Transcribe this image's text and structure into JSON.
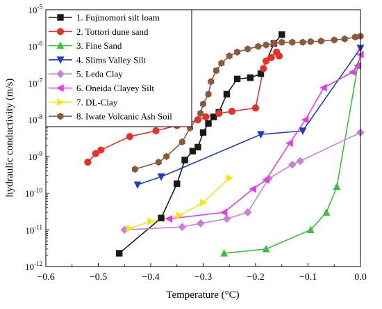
{
  "chart_data": {
    "type": "line",
    "xlabel": "Temperature (°C)",
    "ylabel": "hydraulic conductivity (m/s)",
    "x_scale": "linear",
    "y_scale": "log",
    "xlim": [
      -0.6,
      0.0
    ],
    "ylim": [
      1e-12,
      1e-05
    ],
    "x_ticks": [
      -0.6,
      -0.5,
      -0.4,
      -0.3,
      -0.2,
      -0.1,
      0.0
    ],
    "x_tick_labels": [
      "−0.6",
      "−0.5",
      "−0.4",
      "−0.3",
      "−0.2",
      "−0.1",
      "0.0"
    ],
    "y_ticks": [
      -12,
      -11,
      -10,
      -9,
      -8,
      -7,
      -6,
      -5
    ],
    "y_tick_labels": [
      {
        "base": "10",
        "exp": "-12"
      },
      {
        "base": "10",
        "exp": "-11"
      },
      {
        "base": "10",
        "exp": "-10"
      },
      {
        "base": "10",
        "exp": "-9"
      },
      {
        "base": "10",
        "exp": "-8"
      },
      {
        "base": "10",
        "exp": "-7"
      },
      {
        "base": "10",
        "exp": "-6"
      },
      {
        "base": "10",
        "exp": "-5"
      }
    ],
    "grid": false,
    "legend_position": "top-left",
    "series": [
      {
        "name": "1. Fujinomori silt loam",
        "color": "#1a1a1a",
        "marker": "square",
        "x": [
          -0.46,
          -0.38,
          -0.35,
          -0.335,
          -0.32,
          -0.31,
          -0.3,
          -0.29,
          -0.28,
          -0.27,
          -0.255,
          -0.235,
          -0.21,
          -0.19,
          -0.165,
          -0.15
        ],
        "y": [
          2.3e-12,
          2.1e-11,
          1.8e-10,
          8e-10,
          1.4e-09,
          1.8e-09,
          4.5e-09,
          8e-09,
          1.2e-08,
          1.6e-08,
          5e-08,
          1.3e-07,
          1.4e-07,
          1.8e-07,
          1.2e-06,
          2.1e-06
        ]
      },
      {
        "name": "2. Tottori dune sand",
        "color": "#e8302a",
        "marker": "circle",
        "x": [
          -0.52,
          -0.505,
          -0.495,
          -0.44,
          -0.39,
          -0.35,
          -0.33,
          -0.31,
          -0.295,
          -0.27,
          -0.245,
          -0.2,
          -0.185,
          -0.18,
          -0.17,
          -0.16,
          -0.155
        ],
        "y": [
          7e-10,
          1.2e-09,
          1.5e-09,
          3.5e-09,
          5e-09,
          7e-09,
          8e-09,
          1e-08,
          1.2e-08,
          1.5e-08,
          1.7e-08,
          2.1e-08,
          2.5e-07,
          4e-07,
          5e-07,
          7e-07,
          5.5e-07
        ]
      },
      {
        "name": "3. Fine Sand",
        "color": "#3fbf3f",
        "marker": "triangle-up",
        "x": [
          -0.26,
          -0.18,
          -0.095,
          -0.065,
          -0.045,
          -0.005
        ],
        "y": [
          2.3e-12,
          3e-12,
          1e-11,
          3e-11,
          1.5e-10,
          3e-07
        ]
      },
      {
        "name": "4. Slims Valley Silt",
        "color": "#1f3fbf",
        "marker": "triangle-down",
        "x": [
          -0.425,
          -0.38,
          -0.19,
          -0.11,
          0.0
        ],
        "y": [
          1.7e-10,
          2.8e-10,
          4e-09,
          5e-09,
          9e-07
        ]
      },
      {
        "name": "5. Leda Clay",
        "color": "#c880d8",
        "marker": "diamond",
        "x": [
          -0.45,
          -0.34,
          -0.305,
          -0.255,
          -0.215,
          -0.175,
          -0.13,
          -0.115,
          0.0
        ],
        "y": [
          1e-11,
          1.2e-11,
          1.5e-11,
          2e-11,
          3e-11,
          2.5e-10,
          6e-10,
          7.5e-10,
          4.5e-09
        ]
      },
      {
        "name": "6. Oneida Clayey Silt",
        "color": "#e040e0",
        "marker": "triangle-left",
        "x": [
          -0.365,
          -0.26,
          -0.205,
          -0.18,
          -0.135,
          -0.105,
          -0.07,
          -0.015,
          -0.005,
          0.0
        ],
        "y": [
          2e-11,
          3e-11,
          1.3e-10,
          2.3e-10,
          2.3e-09,
          1e-08,
          7.5e-08,
          2e-07,
          3e-07,
          6e-07
        ]
      },
      {
        "name": "7. DL-Clay",
        "color": "#f2e618",
        "marker": "triangle-right",
        "x": [
          -0.44,
          -0.4,
          -0.345,
          -0.3,
          -0.25
        ],
        "y": [
          1.1e-11,
          1.7e-11,
          2.5e-11,
          5.5e-11,
          2.6e-10
        ]
      },
      {
        "name": "8. Iwate Volcanic Ash Soil",
        "color": "#8b5a3c",
        "marker": "hexagon",
        "x": [
          -0.43,
          -0.385,
          -0.37,
          -0.34,
          -0.325,
          -0.305,
          -0.3,
          -0.29,
          -0.285,
          -0.275,
          -0.265,
          -0.25,
          -0.235,
          -0.215,
          -0.195,
          -0.18,
          -0.165,
          -0.15,
          -0.13,
          -0.11,
          -0.095,
          -0.075,
          -0.05,
          -0.03,
          -0.01,
          0.0
        ],
        "y": [
          4.5e-10,
          7e-10,
          1e-09,
          2.5e-09,
          6e-09,
          1.5e-08,
          2.7e-08,
          5e-08,
          1.1e-07,
          2.2e-07,
          3.5e-07,
          5.5e-07,
          7e-07,
          8.5e-07,
          1e-06,
          1.1e-06,
          1.2e-06,
          1.3e-06,
          1.3e-06,
          1.3e-06,
          1.35e-06,
          1.4e-06,
          1.5e-06,
          1.6e-06,
          1.8e-06,
          1.9e-06
        ]
      }
    ]
  }
}
